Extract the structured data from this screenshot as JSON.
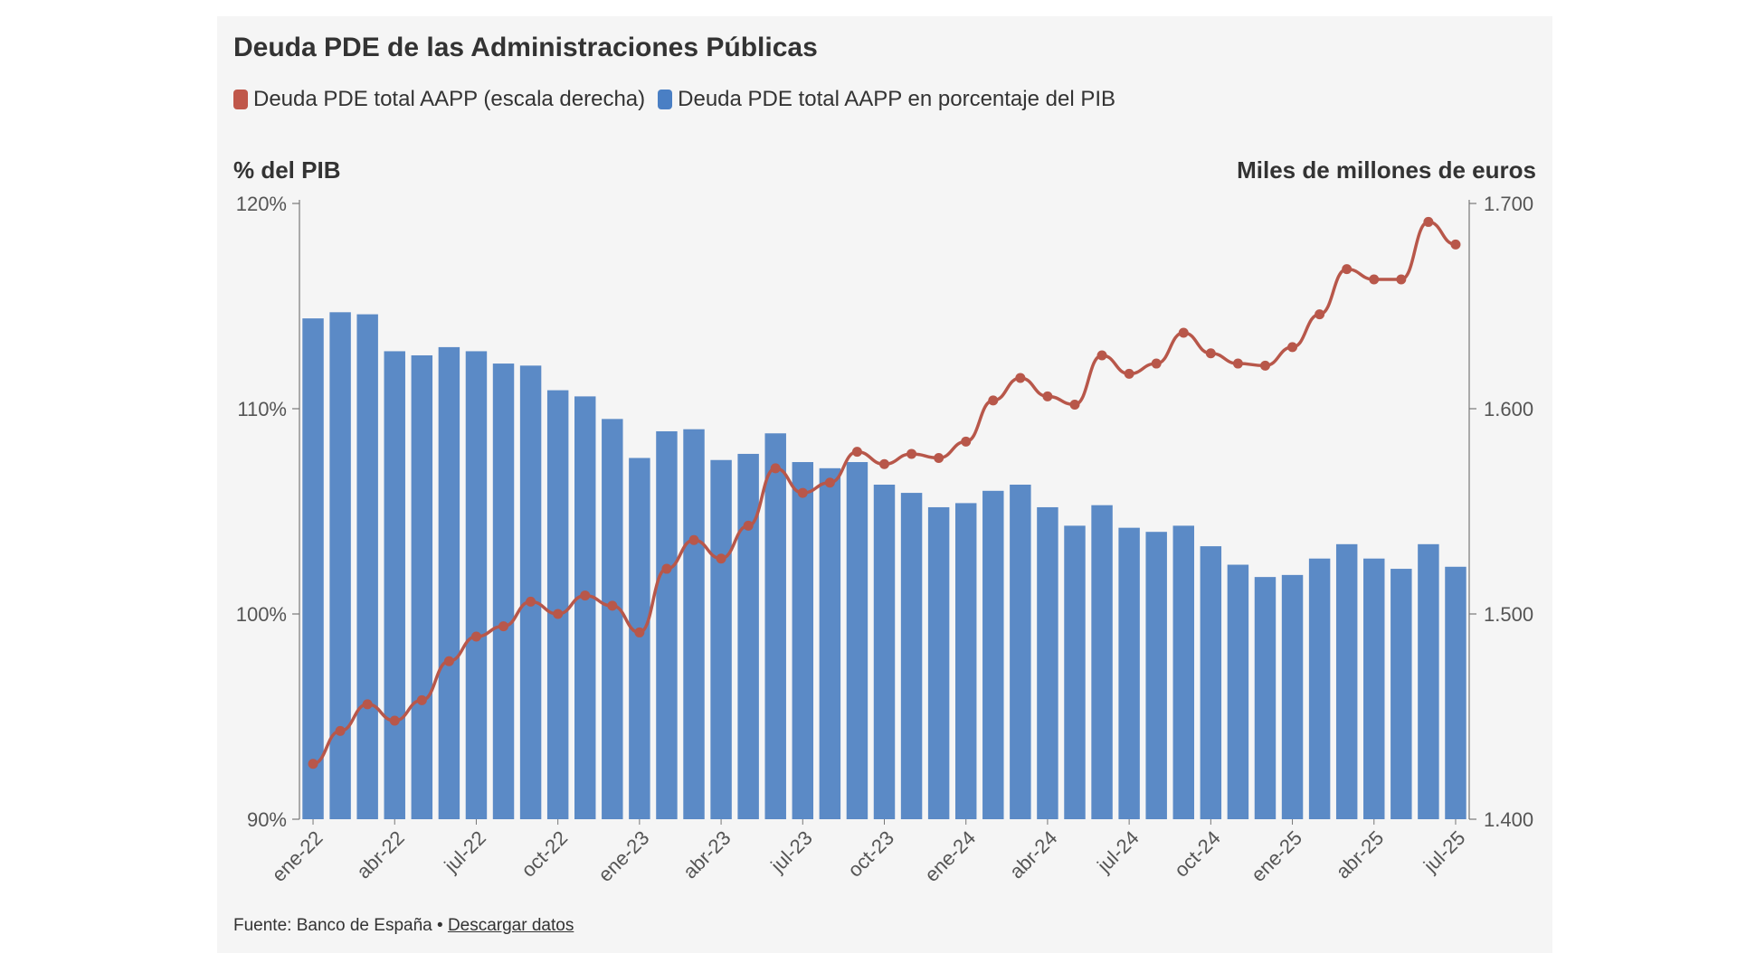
{
  "title": "Deuda PDE de las Administraciones Públicas",
  "legend": [
    {
      "label": "Deuda PDE total AAPP (escala derecha)",
      "color": "#c0574a"
    },
    {
      "label": "Deuda PDE total AAPP en porcentaje del PIB",
      "color": "#4a7fc4"
    }
  ],
  "left_axis_title": "% del PIB",
  "right_axis_title": "Miles de millones de euros",
  "source": {
    "text": "Fuente: Banco de España •",
    "link": "Descargar datos"
  },
  "colors": {
    "bar": "#5b8ac6",
    "line": "#b8574a",
    "axis": "#444444",
    "tick_text": "#555555"
  },
  "chart_data": {
    "type": "bar+line",
    "title": "Deuda PDE de las Administraciones Públicas",
    "left_ylabel": "% del PIB",
    "right_ylabel": "Miles de millones de euros",
    "left_ylim": [
      90,
      120
    ],
    "right_ylim": [
      1400,
      1700
    ],
    "left_ticks": [
      {
        "value": 90,
        "label": "90%"
      },
      {
        "value": 100,
        "label": "100%"
      },
      {
        "value": 110,
        "label": "110%"
      },
      {
        "value": 120,
        "label": "120%"
      }
    ],
    "right_ticks": [
      {
        "value": 1400,
        "label": "1.400"
      },
      {
        "value": 1500,
        "label": "1.500"
      },
      {
        "value": 1600,
        "label": "1.600"
      },
      {
        "value": 1700,
        "label": "1.700"
      }
    ],
    "x_tick_labels": [
      {
        "index": 0,
        "label": "ene-22"
      },
      {
        "index": 3,
        "label": "abr-22"
      },
      {
        "index": 6,
        "label": "jul-22"
      },
      {
        "index": 9,
        "label": "oct-22"
      },
      {
        "index": 12,
        "label": "ene-23"
      },
      {
        "index": 15,
        "label": "abr-23"
      },
      {
        "index": 18,
        "label": "jul-23"
      },
      {
        "index": 21,
        "label": "oct-23"
      },
      {
        "index": 24,
        "label": "ene-24"
      },
      {
        "index": 27,
        "label": "abr-24"
      },
      {
        "index": 30,
        "label": "jul-24"
      },
      {
        "index": 33,
        "label": "oct-24"
      },
      {
        "index": 36,
        "label": "ene-25"
      },
      {
        "index": 39,
        "label": "abr-25"
      },
      {
        "index": 42,
        "label": "jul-25"
      }
    ],
    "categories": [
      "ene-22",
      "feb-22",
      "mar-22",
      "abr-22",
      "may-22",
      "jun-22",
      "jul-22",
      "ago-22",
      "sep-22",
      "oct-22",
      "nov-22",
      "dic-22",
      "ene-23",
      "feb-23",
      "mar-23",
      "abr-23",
      "may-23",
      "jun-23",
      "jul-23",
      "ago-23",
      "sep-23",
      "oct-23",
      "nov-23",
      "dic-23",
      "ene-24",
      "feb-24",
      "mar-24",
      "abr-24",
      "may-24",
      "jun-24",
      "jul-24",
      "ago-24",
      "sep-24",
      "oct-24",
      "nov-24",
      "dic-24",
      "ene-25",
      "feb-25",
      "mar-25",
      "abr-25",
      "may-25",
      "jun-25",
      "jul-25"
    ],
    "series": [
      {
        "name": "Deuda PDE total AAPP en porcentaje del PIB",
        "axis": "left",
        "kind": "bar",
        "values": [
          114.4,
          114.7,
          114.6,
          112.8,
          112.6,
          113.0,
          112.8,
          112.2,
          112.1,
          110.9,
          110.6,
          109.5,
          107.6,
          108.9,
          109.0,
          107.5,
          107.8,
          108.8,
          107.4,
          107.1,
          107.4,
          106.3,
          105.9,
          105.2,
          105.4,
          106.0,
          106.3,
          105.2,
          104.3,
          105.3,
          104.2,
          104.0,
          104.3,
          103.3,
          102.4,
          101.8,
          101.9,
          102.7,
          103.4,
          102.7,
          102.2,
          103.4,
          102.3
        ]
      },
      {
        "name": "Deuda PDE total AAPP (escala derecha)",
        "axis": "right",
        "kind": "line",
        "values": [
          1427,
          1443,
          1456,
          1448,
          1458,
          1477,
          1489,
          1494,
          1506,
          1500,
          1509,
          1504,
          1491,
          1522,
          1536,
          1527,
          1543,
          1571,
          1559,
          1564,
          1579,
          1573,
          1578,
          1576,
          1584,
          1604,
          1615,
          1606,
          1602,
          1626,
          1617,
          1622,
          1637,
          1627,
          1622,
          1621,
          1630,
          1646,
          1668,
          1663,
          1663,
          1691,
          1680
        ]
      }
    ]
  }
}
